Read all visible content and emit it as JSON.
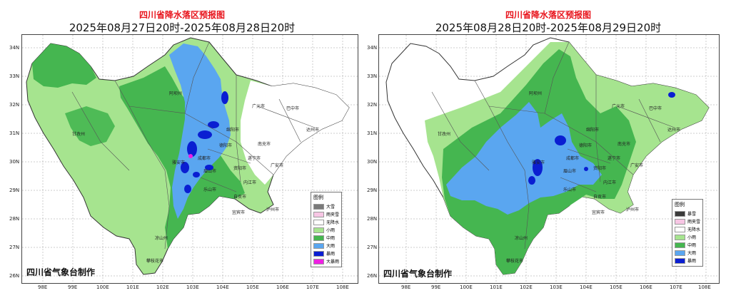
{
  "panels": [
    {
      "title": "四川省降水落区预报图",
      "subtitle": "2025年08月27日20时-2025年08月28日20时",
      "credit": "四川省气象台制作",
      "legend_title": "图例",
      "legend": [
        {
          "label": "大雪",
          "color": "#7a7a7a"
        },
        {
          "label": "雨夹雪",
          "color": "#f7c6e4"
        },
        {
          "label": "无降水",
          "color": "#ffffff"
        },
        {
          "label": "小雨",
          "color": "#a6e48f"
        },
        {
          "label": "中雨",
          "color": "#45b650"
        },
        {
          "label": "大雨",
          "color": "#5aa6f0"
        },
        {
          "label": "暴雨",
          "color": "#0a1ed2"
        },
        {
          "label": "大暴雨",
          "color": "#ef20e3"
        }
      ],
      "lat_ticks": [
        "34N",
        "33N",
        "32N",
        "31N",
        "30N",
        "29N",
        "28N",
        "27N",
        "26N"
      ],
      "lon_ticks": [
        "98E",
        "99E",
        "100E",
        "101E",
        "102E",
        "103E",
        "104E",
        "105E",
        "106E",
        "107E",
        "108E"
      ],
      "cities": [
        "阿坝州",
        "甘孜州",
        "广元市",
        "巴中市",
        "达州市",
        "绵阳市",
        "南充市",
        "成都市",
        "遂宁市",
        "广安市",
        "德阳市",
        "乐山市",
        "眉山市",
        "宜宾市",
        "泸州市",
        "凉山州",
        "攀枝花市",
        "雅安市",
        "内江市",
        "自贡市",
        "资阳市"
      ]
    },
    {
      "title": "四川省降水落区预报图",
      "subtitle": "2025年08月28日20时-2025年08月29日20时",
      "credit": "四川省气象台制作",
      "legend_title": "图例",
      "legend": [
        {
          "label": "暴雪",
          "color": "#3a3a3a"
        },
        {
          "label": "雨夹雪",
          "color": "#f7c6e4"
        },
        {
          "label": "无降水",
          "color": "#ffffff"
        },
        {
          "label": "小雨",
          "color": "#a6e48f"
        },
        {
          "label": "中雨",
          "color": "#45b650"
        },
        {
          "label": "大雨",
          "color": "#5aa6f0"
        },
        {
          "label": "暴雨",
          "color": "#0a1ed2"
        }
      ],
      "lat_ticks": [
        "34N",
        "33N",
        "32N",
        "31N",
        "30N",
        "29N",
        "28N",
        "27N",
        "26N"
      ],
      "lon_ticks": [
        "98E",
        "99E",
        "100E",
        "101E",
        "102E",
        "103E",
        "104E",
        "105E",
        "106E",
        "107E",
        "108E"
      ],
      "cities": [
        "阿坝州",
        "甘孜州",
        "广元市",
        "巴中市",
        "达州市",
        "绵阳市",
        "南充市",
        "成都市",
        "遂宁市",
        "广安市",
        "德阳市",
        "乐山市",
        "眉山市",
        "宜宾市",
        "泸州市",
        "凉山州",
        "攀枝花市",
        "雅安市",
        "内江市",
        "自贡市",
        "资阳市"
      ]
    }
  ]
}
